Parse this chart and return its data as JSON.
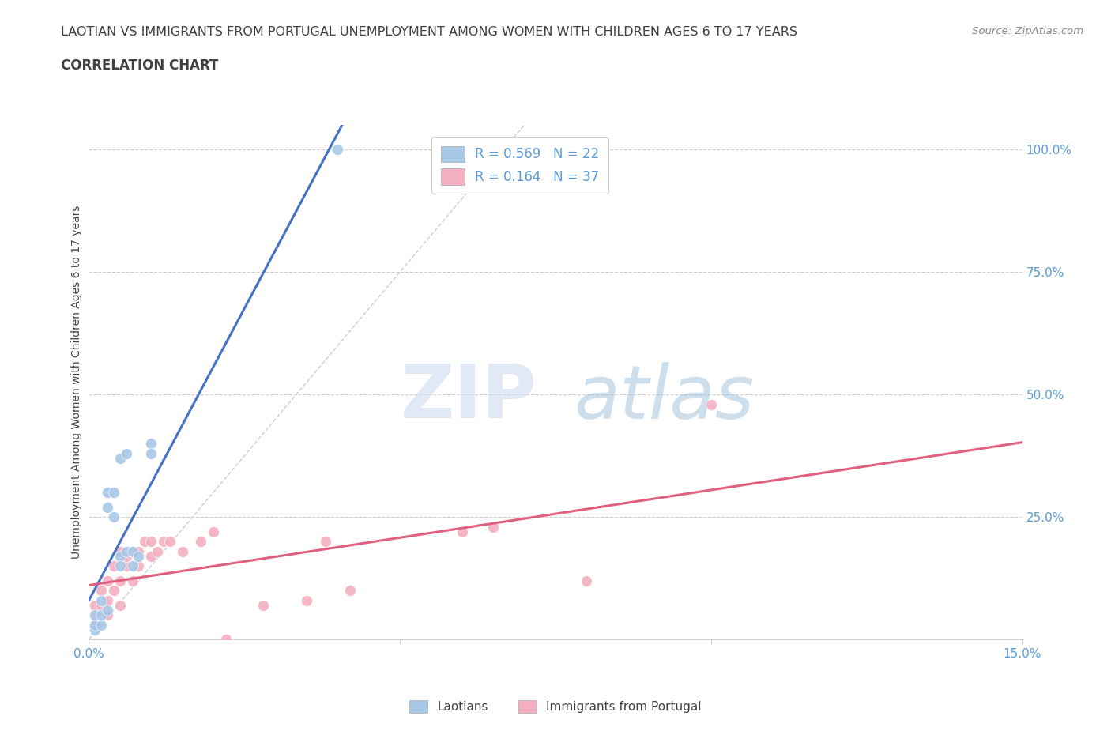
{
  "title_line1": "LAOTIAN VS IMMIGRANTS FROM PORTUGAL UNEMPLOYMENT AMONG WOMEN WITH CHILDREN AGES 6 TO 17 YEARS",
  "title_line2": "CORRELATION CHART",
  "source_text": "Source: ZipAtlas.com",
  "ylabel": "Unemployment Among Women with Children Ages 6 to 17 years",
  "watermark_zip": "ZIP",
  "watermark_atlas": "atlas",
  "r_laotian": 0.569,
  "n_laotian": 22,
  "r_portugal": 0.164,
  "n_portugal": 37,
  "color_laotian": "#a8c8e8",
  "color_portugal": "#f4b0c0",
  "color_laotian_line": "#4472c4",
  "color_portugal_line": "#e06080",
  "color_title": "#404040",
  "color_tick": "#5b9bd5",
  "xlim": [
    0.0,
    0.15
  ],
  "ylim": [
    0.0,
    1.05
  ],
  "laotian_x": [
    0.001,
    0.001,
    0.001,
    0.002,
    0.002,
    0.002,
    0.003,
    0.003,
    0.003,
    0.004,
    0.004,
    0.005,
    0.005,
    0.005,
    0.006,
    0.006,
    0.007,
    0.007,
    0.008,
    0.01,
    0.01,
    0.04
  ],
  "laotian_y": [
    0.02,
    0.03,
    0.05,
    0.03,
    0.05,
    0.08,
    0.06,
    0.27,
    0.3,
    0.25,
    0.3,
    0.17,
    0.15,
    0.37,
    0.18,
    0.38,
    0.18,
    0.15,
    0.17,
    0.4,
    0.38,
    1.0
  ],
  "portugal_x": [
    0.001,
    0.001,
    0.001,
    0.002,
    0.002,
    0.003,
    0.003,
    0.003,
    0.004,
    0.004,
    0.005,
    0.005,
    0.005,
    0.006,
    0.006,
    0.007,
    0.007,
    0.008,
    0.008,
    0.009,
    0.01,
    0.01,
    0.011,
    0.012,
    0.013,
    0.015,
    0.018,
    0.02,
    0.022,
    0.028,
    0.035,
    0.038,
    0.042,
    0.06,
    0.065,
    0.08,
    0.1
  ],
  "portugal_y": [
    0.03,
    0.05,
    0.07,
    0.07,
    0.1,
    0.05,
    0.08,
    0.12,
    0.1,
    0.15,
    0.07,
    0.12,
    0.18,
    0.15,
    0.17,
    0.12,
    0.18,
    0.15,
    0.18,
    0.2,
    0.17,
    0.2,
    0.18,
    0.2,
    0.2,
    0.18,
    0.2,
    0.22,
    0.0,
    0.07,
    0.08,
    0.2,
    0.1,
    0.22,
    0.23,
    0.12,
    0.48
  ]
}
